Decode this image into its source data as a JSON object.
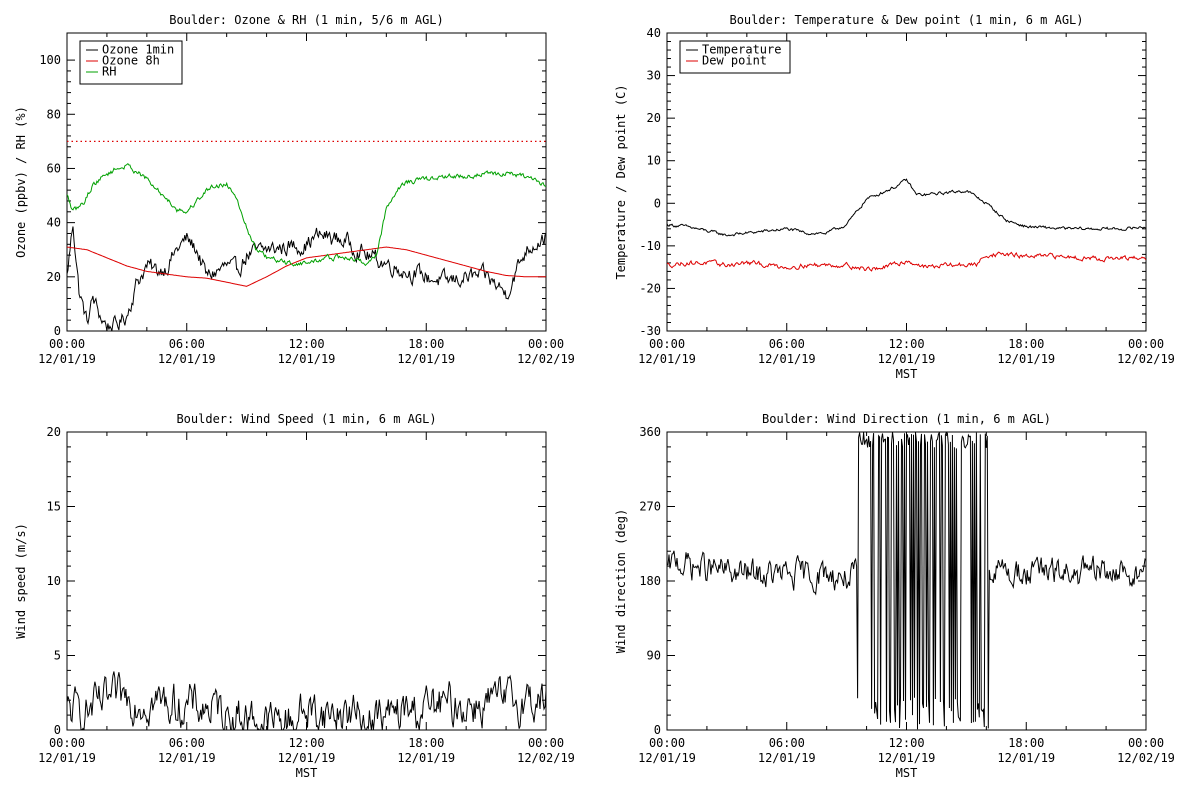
{
  "colors": {
    "black": "#000000",
    "red": "#dd0000",
    "green": "#00a000",
    "background": "#ffffff"
  },
  "chart_data": [
    {
      "type": "line",
      "title": "Boulder: Ozone & RH (1 min, 5/6 m AGL)",
      "xlabel": "",
      "ylabel": "Ozone (ppbv) / RH (%)",
      "xlim": [
        "12/01/19 00:00",
        "12/02/19 00:00"
      ],
      "ylim": [
        0,
        110
      ],
      "yticks": [
        0,
        20,
        40,
        60,
        80,
        100
      ],
      "xtick_labels": [
        [
          "00:00",
          "12/01/19"
        ],
        [
          "06:00",
          "12/01/19"
        ],
        [
          "12:00",
          "12/01/19"
        ],
        [
          "18:00",
          "12/01/19"
        ],
        [
          "00:00",
          "12/02/19"
        ]
      ],
      "legend": "top-left",
      "reference_lines": [
        {
          "y": 70,
          "color": "#dd0000",
          "style": "dotted"
        }
      ],
      "series": [
        {
          "name": "Ozone 1min",
          "color": "#000000",
          "noise": 2.5,
          "x_hours": [
            0,
            0.3,
            0.6,
            1,
            1.3,
            1.7,
            2,
            2.5,
            3,
            3.5,
            4,
            4.5,
            5,
            5.5,
            6,
            6.5,
            7,
            7.5,
            8,
            8.5,
            9,
            10,
            11,
            12,
            12.5,
            13,
            14,
            15,
            16,
            17,
            18,
            19,
            20,
            21,
            22,
            22.5,
            23,
            23.5,
            24
          ],
          "values": [
            20,
            40,
            15,
            3,
            12,
            5,
            2,
            2,
            6,
            18,
            24,
            22,
            24,
            30,
            34,
            30,
            20,
            22,
            24,
            22,
            28,
            30,
            31,
            32,
            35,
            35,
            33,
            28,
            25,
            22,
            20,
            18,
            20,
            20,
            14,
            22,
            30,
            33,
            35
          ]
        },
        {
          "name": "Ozone 8h",
          "color": "#dd0000",
          "noise": 0,
          "x_hours": [
            0,
            1,
            2,
            3,
            4,
            5,
            6,
            7,
            8,
            9,
            10,
            11,
            12,
            13,
            14,
            15,
            16,
            17,
            18,
            19,
            20,
            21,
            22,
            23,
            24
          ],
          "values": [
            31,
            30,
            27,
            24,
            22,
            21,
            20,
            19.5,
            18,
            16.5,
            20,
            24,
            27,
            28,
            29,
            30,
            31,
            30,
            28,
            26,
            24,
            22,
            20.5,
            20,
            20
          ]
        },
        {
          "name": "RH",
          "color": "#00a000",
          "noise": 0.8,
          "x_hours": [
            0,
            0.3,
            0.8,
            1.3,
            2,
            2.5,
            3,
            3.5,
            4,
            4.5,
            5,
            5.5,
            6,
            6.5,
            7,
            7.5,
            8,
            8.5,
            9,
            9.5,
            10,
            11,
            12,
            13,
            14,
            15,
            15.5,
            16,
            16.5,
            17,
            18,
            19,
            20,
            21,
            22,
            23,
            23.5,
            24
          ],
          "values": [
            50,
            44,
            47,
            54,
            58,
            60,
            61,
            59,
            56,
            52,
            49,
            45,
            44,
            48,
            52,
            54,
            54,
            50,
            38,
            30,
            27,
            25,
            25,
            27,
            27,
            25,
            28,
            45,
            52,
            55,
            56,
            57,
            57,
            58,
            58,
            57,
            55,
            54
          ]
        }
      ]
    },
    {
      "type": "line",
      "title": "Boulder: Temperature & Dew point (1 min, 6 m AGL)",
      "xlabel": "MST",
      "ylabel": "Temperature / Dew point (C)",
      "xlim": [
        "12/01/19 00:00",
        "12/02/19 00:00"
      ],
      "ylim": [
        -30,
        40
      ],
      "yticks": [
        -30,
        -20,
        -10,
        0,
        10,
        20,
        30,
        40
      ],
      "xtick_labels": [
        [
          "00:00",
          "12/01/19"
        ],
        [
          "06:00",
          "12/01/19"
        ],
        [
          "12:00",
          "12/01/19"
        ],
        [
          "18:00",
          "12/01/19"
        ],
        [
          "00:00",
          "12/02/19"
        ]
      ],
      "legend": "top-left",
      "series": [
        {
          "name": "Temperature",
          "color": "#000000",
          "noise": 0.3,
          "x_hours": [
            0,
            1,
            2,
            3,
            4,
            5,
            6,
            7,
            8,
            9,
            9.5,
            10,
            11,
            11.5,
            12,
            12.5,
            13,
            14,
            15,
            16,
            17,
            18,
            20,
            22,
            23,
            24
          ],
          "values": [
            -5,
            -5.5,
            -6.5,
            -7.5,
            -7,
            -6.5,
            -6,
            -7,
            -7,
            -5,
            -2,
            1,
            3,
            4,
            5.5,
            2,
            2,
            2.5,
            3,
            0,
            -4,
            -5.5,
            -6,
            -6,
            -6,
            -5.5
          ]
        },
        {
          "name": "Dew point",
          "color": "#dd0000",
          "noise": 0.45,
          "x_hours": [
            0,
            1,
            2,
            3,
            4,
            5,
            6,
            7,
            8,
            9,
            10,
            11,
            12,
            13,
            14,
            15,
            15.5,
            16,
            17,
            18,
            20,
            22,
            24
          ],
          "values": [
            -14.5,
            -14,
            -14,
            -14.5,
            -14,
            -14.5,
            -15,
            -14.5,
            -14.5,
            -14.5,
            -15.5,
            -15,
            -13.5,
            -15,
            -14.5,
            -14.5,
            -14.5,
            -12,
            -12,
            -12.5,
            -12.5,
            -13,
            -13
          ]
        }
      ]
    },
    {
      "type": "line",
      "title": "Boulder: Wind Speed (1 min, 6 m AGL)",
      "xlabel": "MST",
      "ylabel": "Wind speed (m/s)",
      "xlim": [
        "12/01/19 00:00",
        "12/02/19 00:00"
      ],
      "ylim": [
        0,
        20
      ],
      "yticks": [
        0,
        5,
        10,
        15,
        20
      ],
      "xtick_labels": [
        [
          "00:00",
          "12/01/19"
        ],
        [
          "06:00",
          "12/01/19"
        ],
        [
          "12:00",
          "12/01/19"
        ],
        [
          "18:00",
          "12/01/19"
        ],
        [
          "00:00",
          "12/02/19"
        ]
      ],
      "series": [
        {
          "name": "",
          "color": "#000000",
          "noise": 1.1,
          "x_hours": [
            0,
            1,
            2,
            3,
            4,
            5,
            6,
            7,
            8,
            9,
            10,
            11,
            12,
            13,
            14,
            15,
            16,
            17,
            18,
            19,
            20,
            21,
            22,
            23,
            24
          ],
          "values": [
            1.2,
            1.3,
            1.8,
            2.2,
            2,
            1.8,
            1.6,
            1.5,
            1.2,
            0.9,
            0.5,
            0.6,
            1.3,
            1.1,
            1.2,
            0.8,
            0.8,
            1.2,
            1.5,
            1.6,
            1.7,
            1.8,
            1.9,
            2,
            2
          ]
        }
      ]
    },
    {
      "type": "line",
      "title": "Boulder: Wind Direction (1 min, 6 m AGL)",
      "xlabel": "MST",
      "ylabel": "Wind direction (deg)",
      "xlim": [
        "12/01/19 00:00",
        "12/02/19 00:00"
      ],
      "ylim": [
        0,
        360
      ],
      "yticks": [
        0,
        90,
        180,
        270,
        360
      ],
      "xtick_labels": [
        [
          "00:00",
          "12/01/19"
        ],
        [
          "06:00",
          "12/01/19"
        ],
        [
          "12:00",
          "12/01/19"
        ],
        [
          "18:00",
          "12/01/19"
        ],
        [
          "00:00",
          "12/02/19"
        ]
      ],
      "variable_interval_hours": [
        9.5,
        16.1
      ],
      "series": [
        {
          "name": "",
          "color": "#000000",
          "noise": 14,
          "x_hours": [
            0,
            0.5,
            1,
            2,
            3,
            4,
            5,
            6,
            7,
            8,
            9,
            9.5,
            16.1,
            17,
            18,
            19,
            20,
            21,
            22,
            23,
            24
          ],
          "values": [
            190,
            205,
            200,
            195,
            190,
            188,
            187,
            186,
            187,
            188,
            185,
            185,
            190,
            192,
            190,
            189,
            188,
            188,
            190,
            190,
            190
          ]
        }
      ]
    }
  ]
}
